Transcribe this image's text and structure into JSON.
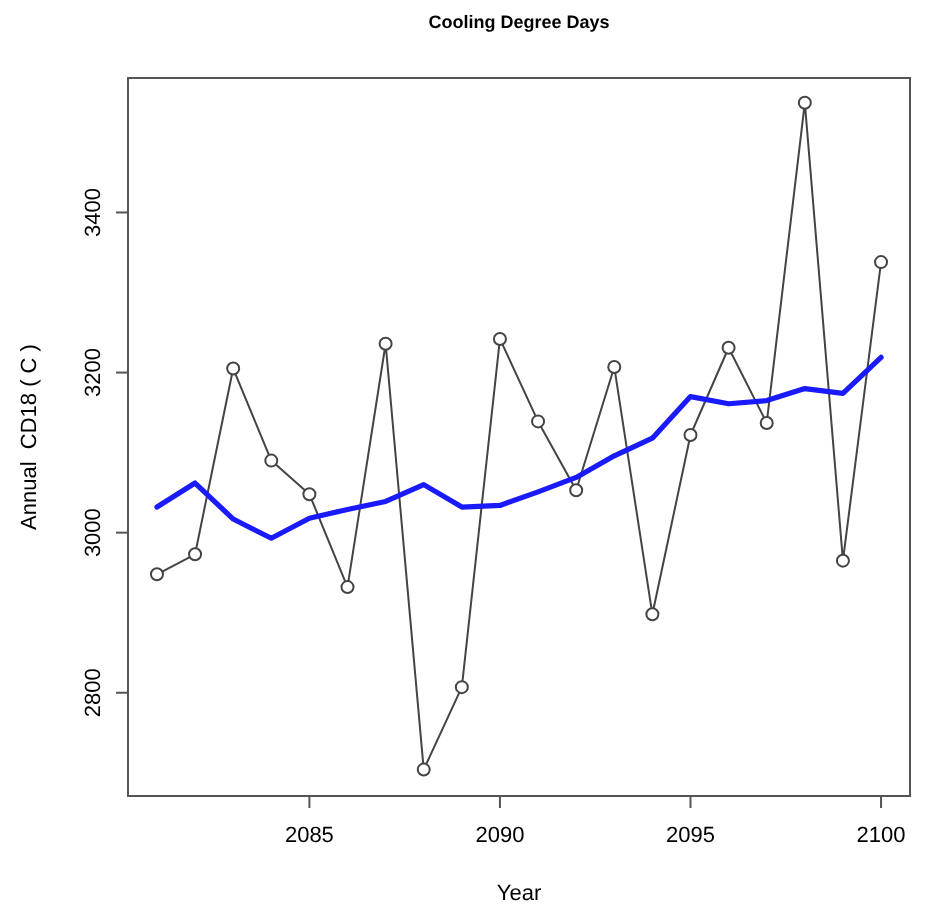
{
  "chart_data": {
    "type": "line",
    "title": "Cooling Degree Days",
    "xlabel": "Year",
    "ylabel": "Annual  CD18 ( C )",
    "x": [
      2081,
      2082,
      2083,
      2084,
      2085,
      2086,
      2087,
      2088,
      2089,
      2090,
      2091,
      2092,
      2093,
      2094,
      2095,
      2096,
      2097,
      2098,
      2099,
      2100
    ],
    "series": [
      {
        "color": "#444444",
        "marker": "circle",
        "values": [
          2948,
          2973,
          3205,
          3090,
          3048,
          2932,
          3236,
          2704,
          2807,
          3242,
          3139,
          3053,
          3207,
          2898,
          3122,
          3231,
          3137,
          3537,
          2965,
          3338
        ]
      },
      {
        "color": "#1a1aff",
        "marker": "none",
        "values": [
          3032,
          3062,
          3017,
          2993,
          3018,
          3029,
          3039,
          3060,
          3032,
          3034,
          3051,
          3069,
          3096,
          3118,
          3170,
          3161,
          3165,
          3180,
          3174,
          3219
        ]
      }
    ],
    "xlim": [
      2080.24,
      2100.76
    ],
    "ylim": [
      2671,
      3568
    ],
    "xticks": [
      2085,
      2090,
      2095,
      2100
    ],
    "yticks": [
      2800,
      3000,
      3200,
      3400
    ],
    "grid": false
  }
}
